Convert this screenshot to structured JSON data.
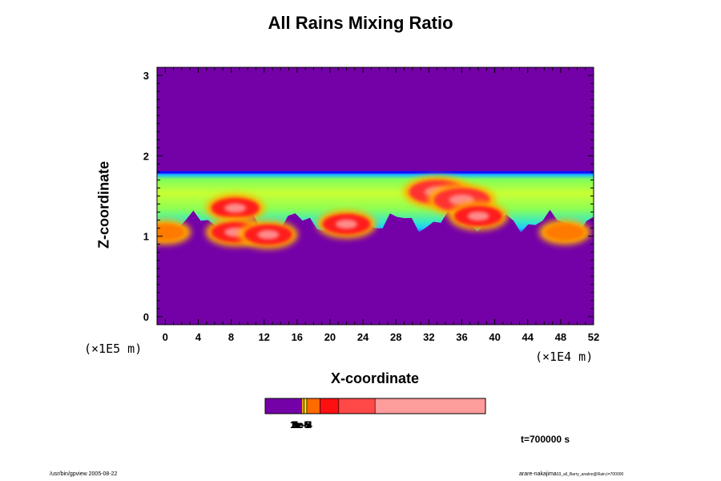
{
  "chart_data": {
    "type": "heatmap",
    "title": "All Rains Mixing Ratio",
    "xlabel": "X-coordinate",
    "ylabel": "Z-coordinate",
    "x_unit": "(×1E4 m)",
    "y_unit": "(×1E5 m)",
    "x_ticks": [
      "0",
      "4",
      "8",
      "12",
      "16",
      "20",
      "24",
      "28",
      "32",
      "36",
      "40",
      "44",
      "48",
      "52"
    ],
    "y_ticks": [
      "0",
      "1",
      "2",
      "3"
    ],
    "xlim": [
      -1,
      52
    ],
    "ylim": [
      -0.1,
      3.1
    ],
    "layer": {
      "z_bottom": 1.0,
      "z_top": 1.8
    },
    "cells": [
      {
        "x": 8.5,
        "z": 1.35,
        "level": 4
      },
      {
        "x": 8.5,
        "z": 1.05,
        "level": 4
      },
      {
        "x": 12.5,
        "z": 1.02,
        "level": 4
      },
      {
        "x": 22,
        "z": 1.15,
        "level": 4
      },
      {
        "x": 33,
        "z": 1.55,
        "level": 5
      },
      {
        "x": 36,
        "z": 1.45,
        "level": 5
      },
      {
        "x": 38,
        "z": 1.25,
        "level": 4
      },
      {
        "x": 48.5,
        "z": 1.05,
        "level": 3
      },
      {
        "x": 0,
        "z": 1.05,
        "level": 3
      }
    ],
    "colorbar": {
      "colors": [
        "#7400a8",
        "#f0a000",
        "#ffe000",
        "#ff6a00",
        "#ff1010",
        "#ff4848",
        "#ff9c9c"
      ],
      "fractions": [
        0.165,
        0.012,
        0.012,
        0.06,
        0.085,
        0.165,
        0.501
      ],
      "tick_labels": [
        "1e-5",
        "2e-5",
        "5e-5",
        "1e-4",
        "2e-4",
        "5e-4"
      ]
    },
    "grid": false
  },
  "time_label": "t=700000 s",
  "footer": {
    "left": "/usr/bin/gpview 2005-08-22",
    "right_main": "arare-nakajima",
    "right_small": "03_all_Barry_analno@Rain,t=700000"
  }
}
